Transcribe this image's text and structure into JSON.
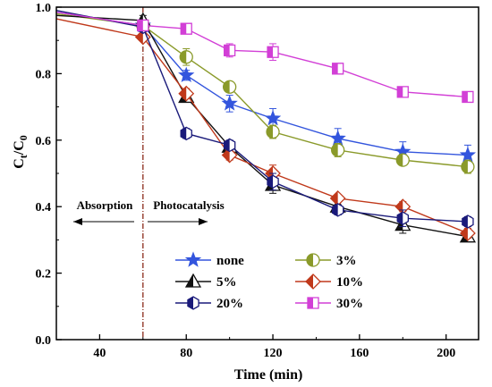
{
  "chart_data": {
    "type": "line",
    "xlabel": "Time (min)",
    "ylabel_main": "C",
    "ylabel_sub1": "t",
    "ylabel_mid": "/C",
    "ylabel_sub2": "0",
    "xlim": [
      20,
      215
    ],
    "ylim": [
      0.0,
      1.0
    ],
    "xticks": [
      40,
      80,
      120,
      160,
      200
    ],
    "yticks": [
      0.0,
      0.2,
      0.4,
      0.6,
      0.8,
      1.0
    ],
    "divider_x": 60,
    "annotations": {
      "left": "Absorption",
      "right": "Photocatalysis"
    },
    "series": [
      {
        "name": "none",
        "color": "#3355dd",
        "marker": "star",
        "x": [
          20,
          60,
          80,
          100,
          120,
          150,
          180,
          210
        ],
        "y": [
          0.985,
          0.945,
          0.795,
          0.71,
          0.665,
          0.605,
          0.565,
          0.555
        ],
        "err": [
          0,
          0.01,
          0.015,
          0.025,
          0.03,
          0.03,
          0.03,
          0.03
        ]
      },
      {
        "name": "3%",
        "color": "#8a9a2a",
        "marker": "circle-half",
        "x": [
          20,
          60,
          80,
          100,
          120,
          150,
          180,
          210
        ],
        "y": [
          0.98,
          0.945,
          0.85,
          0.76,
          0.625,
          0.57,
          0.54,
          0.52
        ],
        "err": [
          0,
          0.01,
          0.025,
          0.01,
          0.02,
          0.02,
          0.015,
          0.02
        ]
      },
      {
        "name": "5%",
        "color": "#111111",
        "marker": "triangle-half",
        "x": [
          20,
          60,
          80,
          100,
          120,
          150,
          180,
          210
        ],
        "y": [
          0.975,
          0.96,
          0.73,
          0.58,
          0.465,
          0.4,
          0.345,
          0.31
        ],
        "err": [
          0,
          0.015,
          0.015,
          0.015,
          0.025,
          0.015,
          0.025,
          0.015
        ]
      },
      {
        "name": "10%",
        "color": "#c0391b",
        "marker": "diamond-half",
        "x": [
          20,
          60,
          80,
          100,
          120,
          150,
          180,
          210
        ],
        "y": [
          0.965,
          0.91,
          0.74,
          0.555,
          0.5,
          0.425,
          0.4,
          0.32
        ],
        "err": [
          0,
          0.01,
          0.015,
          0.015,
          0.025,
          0.01,
          0.015,
          0.015
        ]
      },
      {
        "name": "20%",
        "color": "#1a1a7a",
        "marker": "hexagon-half",
        "x": [
          20,
          60,
          80,
          100,
          120,
          150,
          180,
          210
        ],
        "y": [
          0.99,
          0.94,
          0.62,
          0.585,
          0.475,
          0.39,
          0.365,
          0.355
        ],
        "err": [
          0,
          0.01,
          0.015,
          0.015,
          0.025,
          0.015,
          0.025,
          0.015
        ]
      },
      {
        "name": "30%",
        "color": "#d23fd6",
        "marker": "square-half",
        "x": [
          20,
          60,
          80,
          100,
          120,
          150,
          180,
          210
        ],
        "y": [
          0.985,
          0.945,
          0.935,
          0.87,
          0.865,
          0.815,
          0.745,
          0.73
        ],
        "err": [
          0,
          0.01,
          0.015,
          0.02,
          0.025,
          0.01,
          0.01,
          0.015
        ]
      }
    ],
    "legend_placement": "lower-center",
    "grid": false
  }
}
